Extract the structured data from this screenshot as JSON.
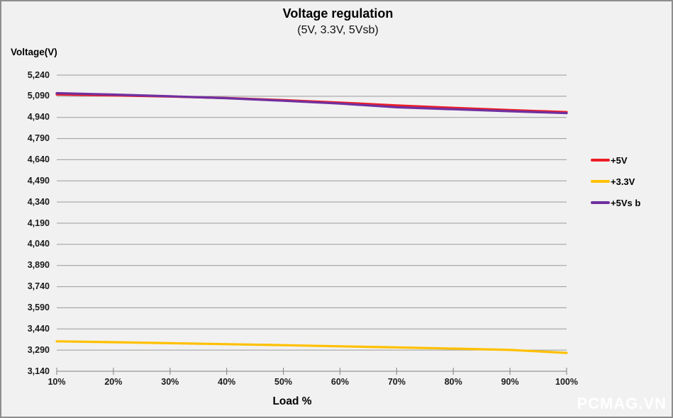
{
  "chart": {
    "title": "Voltage regulation",
    "subtitle": "(5V, 3.3V, 5Vsb)",
    "y_axis_title": "Voltage(V)",
    "x_axis_title": "Load %"
  },
  "legend": {
    "entries": [
      {
        "label": "+5V",
        "color": "#ED1C24"
      },
      {
        "label": "+3.3V",
        "color": "#FFC000"
      },
      {
        "label": "+5Vs b",
        "color": "#7030A0"
      }
    ]
  },
  "watermark": "PCMAG.VN",
  "colors": {
    "background": "#F1F1F1",
    "frame_border": "#8E8E8E",
    "gridline": "#9A9A9A",
    "axis": "#808080",
    "series_5v": "#ED1C24",
    "series_3v3": "#FFC000",
    "series_5vsb": "#7030A0"
  },
  "chart_data": {
    "type": "line",
    "title": "Voltage regulation",
    "subtitle": "(5V, 3.3V, 5Vsb)",
    "xlabel": "Load %",
    "ylabel": "Voltage(V)",
    "x": [
      "10%",
      "20%",
      "30%",
      "40%",
      "50%",
      "60%",
      "70%",
      "80%",
      "90%",
      "100%"
    ],
    "series": [
      {
        "name": "+5V",
        "color": "#ED1C24",
        "values": [
          5103,
          5096,
          5088,
          5077,
          5062,
          5045,
          5025,
          5008,
          4992,
          4978
        ]
      },
      {
        "name": "+3.3V",
        "color": "#FFC000",
        "values": [
          3352,
          3346,
          3339,
          3332,
          3325,
          3317,
          3309,
          3301,
          3291,
          3270
        ]
      },
      {
        "name": "+5Vsb",
        "color": "#7030A0",
        "values": [
          5112,
          5102,
          5090,
          5076,
          5058,
          5038,
          5012,
          4998,
          4984,
          4970
        ]
      }
    ],
    "ylim": [
      3140,
      5240
    ],
    "ytick_step": 150,
    "ytick_labels": [
      "5,240",
      "5,090",
      "4,940",
      "4,790",
      "4,640",
      "4,490",
      "4,340",
      "4,190",
      "4,040",
      "3,890",
      "3,740",
      "3,590",
      "3,440",
      "3,290",
      "3,140"
    ],
    "grid": true,
    "legend_position": "right"
  }
}
